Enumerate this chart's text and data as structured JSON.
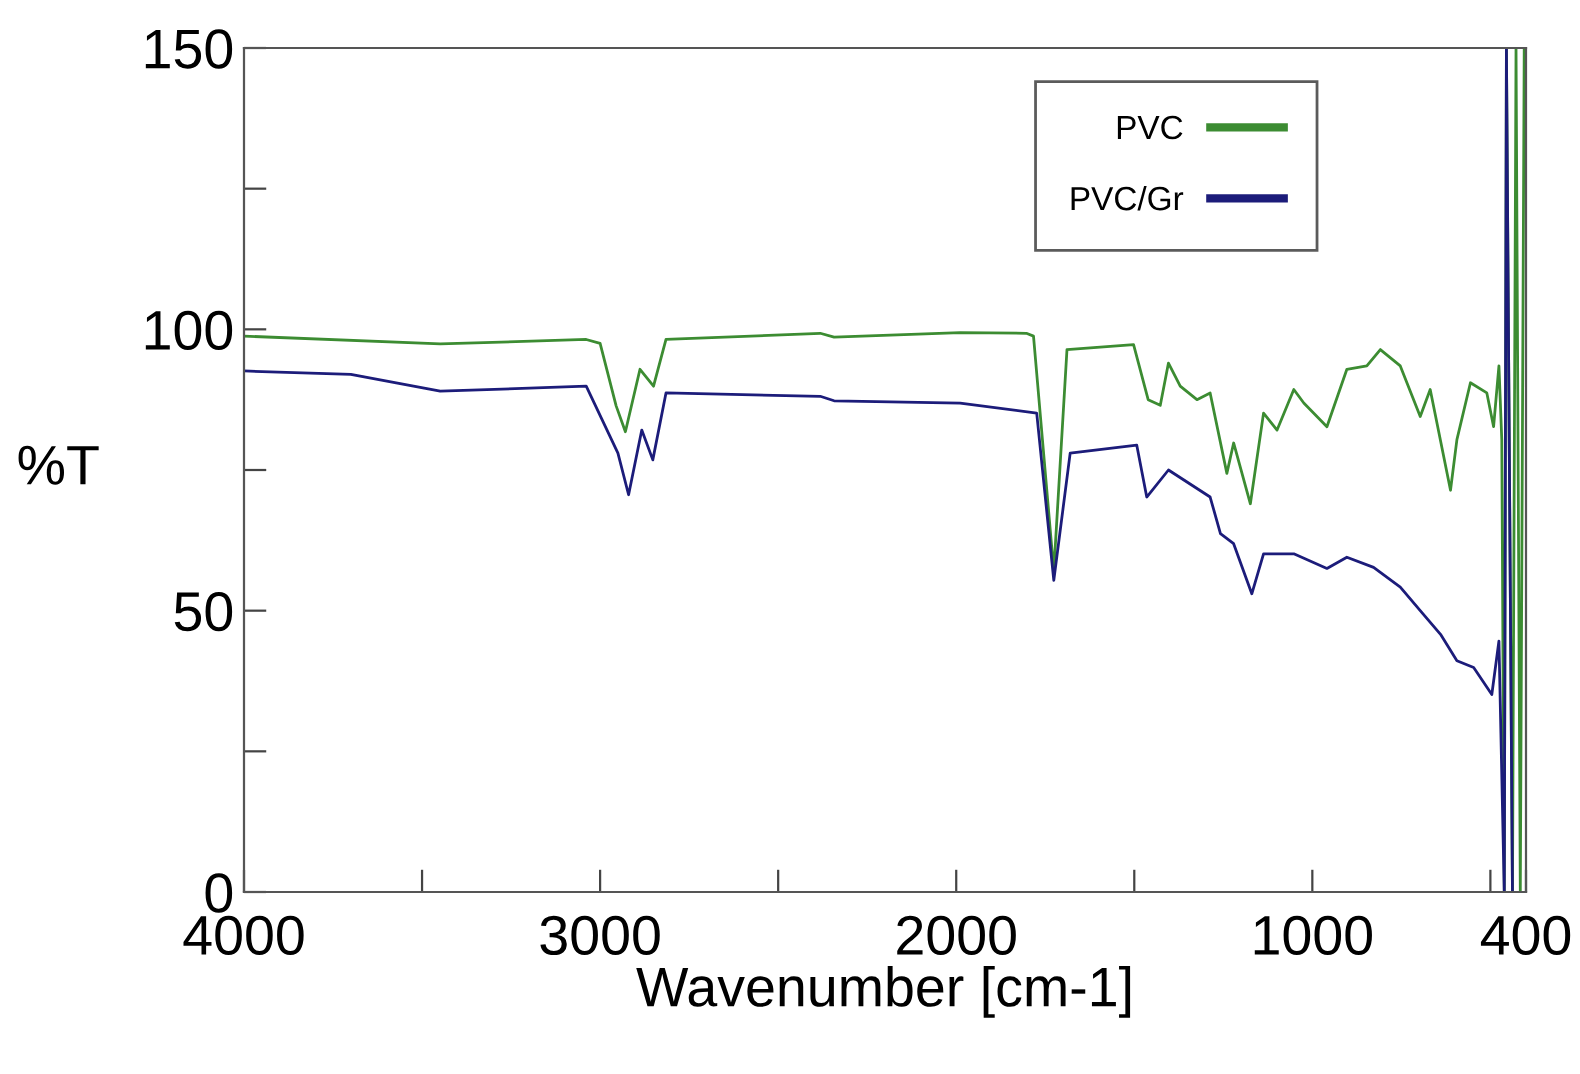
{
  "chart_data": {
    "type": "line",
    "xlabel": "Wavenumber [cm-1]",
    "ylabel": "%T",
    "xlim": [
      4000,
      400
    ],
    "ylim": [
      0,
      150
    ],
    "xticks": [
      4000,
      {
        "value": 3500,
        "label": null
      },
      3000,
      {
        "value": 2500,
        "label": null
      },
      2000,
      {
        "value": 1500,
        "label": null
      },
      1000,
      {
        "value": 500,
        "label": null
      },
      400
    ],
    "yticks": [
      0,
      {
        "value": 25,
        "label": null
      },
      50,
      {
        "value": 75,
        "label": null
      },
      100,
      {
        "value": 125,
        "label": null
      },
      150
    ],
    "grid": false,
    "legend": "top right",
    "marker": "none",
    "line_style": "solid",
    "series": [
      {
        "name": "PVC",
        "color": "#3c8c32",
        "x": [
          4000,
          3449,
          3039,
          3000,
          2955,
          2929,
          2888,
          2850,
          2815,
          2382,
          2343,
          1989,
          1803,
          1783,
          1726,
          1689,
          1502,
          1461,
          1427,
          1404,
          1371,
          1324,
          1287,
          1240,
          1221,
          1174,
          1137,
          1099,
          1052,
          1024,
          959,
          903,
          847,
          809,
          753,
          697,
          669,
          612,
          594,
          556,
          510,
          491,
          476,
          468,
          461,
          455,
          438,
          428,
          416,
          405
        ],
        "values": [
          98.8,
          97.4,
          98.2,
          97.5,
          86.4,
          81.8,
          92.9,
          89.9,
          98.2,
          99.3,
          98.6,
          99.4,
          99.3,
          98.8,
          57,
          96.4,
          97.3,
          87.5,
          86.5,
          94.0,
          89.9,
          87.5,
          88.7,
          74.4,
          79.8,
          69.0,
          85.1,
          82.1,
          89.3,
          86.9,
          82.7,
          92.9,
          93.5,
          96.4,
          93.5,
          84.5,
          89.3,
          71.4,
          80.4,
          90.5,
          88.7,
          82.7,
          93.5,
          80.4,
          0,
          150,
          0,
          150,
          0,
          150
        ]
      },
      {
        "name": "PVC/Gr",
        "color": "#1c1c7a",
        "x": [
          4000,
          3700,
          3449,
          3039,
          2950,
          2920,
          2883,
          2852,
          2815,
          2382,
          2343,
          1989,
          1774,
          1726,
          1680,
          1493,
          1465,
          1404,
          1287,
          1258,
          1221,
          1170,
          1137,
          1052,
          959,
          903,
          828,
          753,
          697,
          640,
          594,
          547,
          496,
          476,
          461,
          455,
          438
        ],
        "values": [
          92.6,
          92.0,
          89.0,
          89.9,
          78.0,
          70.6,
          82.1,
          76.8,
          88.7,
          88.1,
          87.3,
          86.9,
          85.1,
          55.4,
          78.0,
          79.4,
          70.2,
          75.0,
          70.2,
          63.7,
          61.9,
          53.0,
          60.1,
          60.1,
          57.5,
          59.5,
          57.7,
          54.2,
          50.0,
          45.8,
          41.1,
          39.9,
          35.1,
          44.6,
          0,
          150,
          0
        ]
      }
    ]
  }
}
